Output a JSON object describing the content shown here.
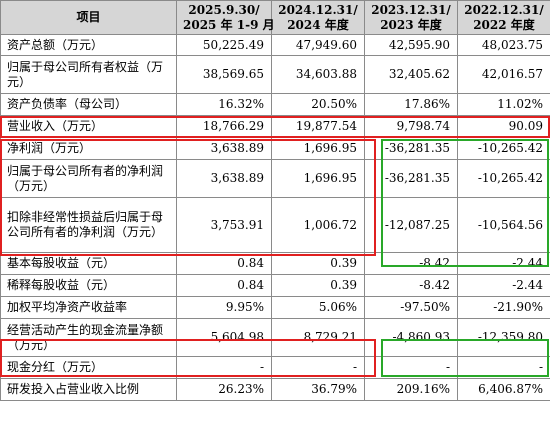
{
  "header": {
    "item": "项目",
    "cols": [
      [
        "2025.9.30/",
        "2025 年 1-9 月"
      ],
      [
        "2024.12.31/",
        "2024 年度"
      ],
      [
        "2023.12.31/",
        "2023 年度"
      ],
      [
        "2022.12.31/",
        "2022 年度"
      ]
    ]
  },
  "rows": [
    {
      "label": "资产总额（万元）",
      "values": [
        "50,225.49",
        "47,949.60",
        "42,595.90",
        "48,023.75"
      ]
    },
    {
      "label": "归属于母公司所有者权益（万元）",
      "values": [
        "38,569.65",
        "34,603.88",
        "32,405.62",
        "42,016.57"
      ]
    },
    {
      "label": "资产负债率（母公司）",
      "values": [
        "16.32%",
        "20.50%",
        "17.86%",
        "11.02%"
      ]
    },
    {
      "label": "营业收入（万元）",
      "values": [
        "18,766.29",
        "19,877.54",
        "9,798.74",
        "90.09"
      ]
    },
    {
      "label": "净利润（万元）",
      "values": [
        "3,638.89",
        "1,696.95",
        "-36,281.35",
        "-10,265.42"
      ]
    },
    {
      "label": "归属于母公司所有者的净利润（万元）",
      "values": [
        "3,638.89",
        "1,696.95",
        "-36,281.35",
        "-10,265.42"
      ]
    },
    {
      "label": "扣除非经常性损益后归属于母公司所有者的净利润（万元）",
      "values": [
        "3,753.91",
        "1,006.72",
        "-12,087.25",
        "-10,564.56"
      ]
    },
    {
      "label": "基本每股收益（元）",
      "values": [
        "0.84",
        "0.39",
        "-8.42",
        "-2.44"
      ]
    },
    {
      "label": "稀释每股收益（元）",
      "values": [
        "0.84",
        "0.39",
        "-8.42",
        "-2.44"
      ]
    },
    {
      "label": "加权平均净资产收益率",
      "values": [
        "9.95%",
        "5.06%",
        "-97.50%",
        "-21.90%"
      ]
    },
    {
      "label": "经营活动产生的现金流量净额（万元）",
      "values": [
        "5,604.98",
        "8,729.21",
        "-4,860.93",
        "-12,359.80"
      ]
    },
    {
      "label": "现金分红（万元）",
      "values": [
        "-",
        "-",
        "-",
        "-"
      ]
    },
    {
      "label": "研发投入占营业收入比例",
      "values": [
        "26.23%",
        "36.79%",
        "209.16%",
        "6,406.87%"
      ]
    }
  ]
}
